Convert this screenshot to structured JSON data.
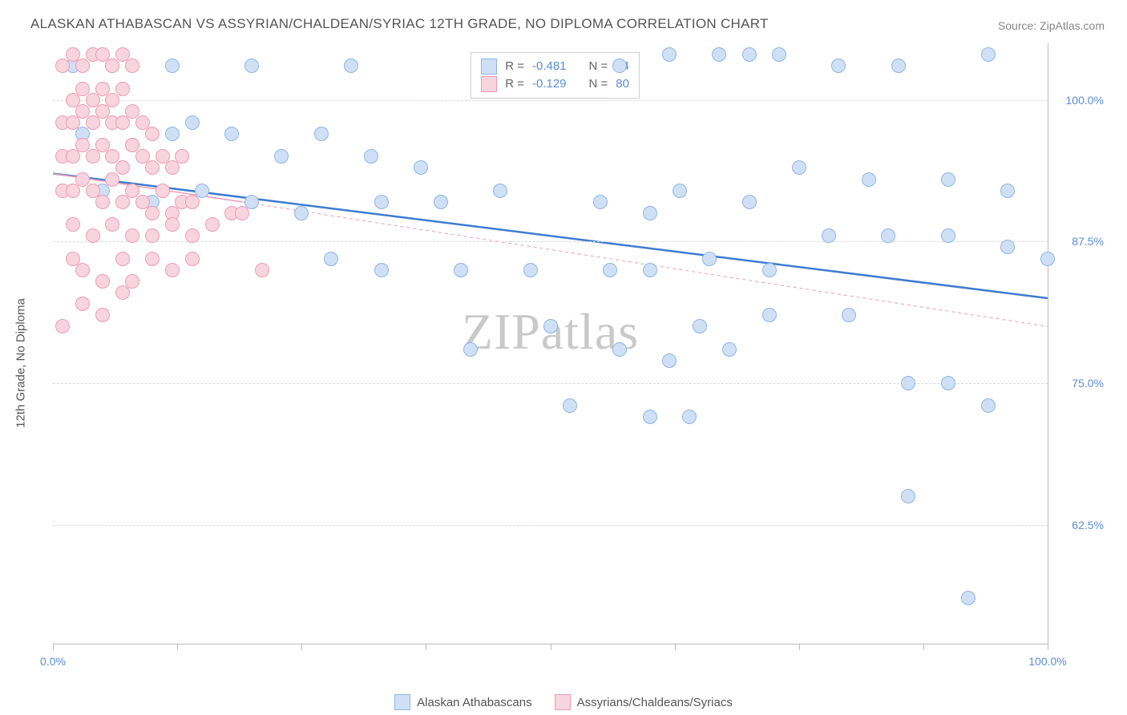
{
  "title": "ALASKAN ATHABASCAN VS ASSYRIAN/CHALDEAN/SYRIAC 12TH GRADE, NO DIPLOMA CORRELATION CHART",
  "source_label": "Source:",
  "source_link": "ZipAtlas.com",
  "y_axis_label": "12th Grade, No Diploma",
  "watermark_a": "ZIP",
  "watermark_b": "atlas",
  "chart": {
    "type": "scatter",
    "xlim": [
      0,
      100
    ],
    "ylim": [
      52,
      105
    ],
    "background_color": "#ffffff",
    "grid_color": "#d8d8d8",
    "axis_color": "#bbbbbb",
    "y_ticks": [
      62.5,
      75.0,
      87.5,
      100.0
    ],
    "y_tick_labels": [
      "62.5%",
      "75.0%",
      "87.5%",
      "100.0%"
    ],
    "x_ticks": [
      0,
      12.5,
      25,
      37.5,
      50,
      62.5,
      75,
      87.5,
      100
    ],
    "x_tick_labels": {
      "0": "0.0%",
      "100": "100.0%"
    },
    "marker_radius": 9,
    "series": [
      {
        "name": "Alaskan Athabascans",
        "fill": "#cfe0f6",
        "stroke": "#8fb4e4",
        "r_value": "-0.481",
        "n_value": "74",
        "trend": {
          "type": "solid",
          "color": "#3d7cd0",
          "width": 2.5,
          "x1": 0,
          "y1": 93.5,
          "x2": 100,
          "y2": 82.5,
          "dash_extend": false
        },
        "points": [
          [
            2,
            103
          ],
          [
            6,
            103
          ],
          [
            12,
            103
          ],
          [
            20,
            103
          ],
          [
            30,
            103
          ],
          [
            57,
            103
          ],
          [
            62,
            104
          ],
          [
            67,
            104
          ],
          [
            70,
            104
          ],
          [
            73,
            104
          ],
          [
            79,
            103
          ],
          [
            85,
            103
          ],
          [
            94,
            104
          ],
          [
            3,
            97
          ],
          [
            8,
            96
          ],
          [
            12,
            97
          ],
          [
            14,
            98
          ],
          [
            18,
            97
          ],
          [
            23,
            95
          ],
          [
            27,
            97
          ],
          [
            32,
            95
          ],
          [
            37,
            94
          ],
          [
            5,
            92
          ],
          [
            10,
            91
          ],
          [
            15,
            92
          ],
          [
            20,
            91
          ],
          [
            25,
            90
          ],
          [
            33,
            91
          ],
          [
            39,
            91
          ],
          [
            45,
            92
          ],
          [
            55,
            91
          ],
          [
            60,
            90
          ],
          [
            63,
            92
          ],
          [
            70,
            91
          ],
          [
            75,
            94
          ],
          [
            82,
            93
          ],
          [
            90,
            93
          ],
          [
            96,
            92
          ],
          [
            28,
            86
          ],
          [
            33,
            85
          ],
          [
            41,
            85
          ],
          [
            48,
            85
          ],
          [
            56,
            85
          ],
          [
            60,
            85
          ],
          [
            66,
            86
          ],
          [
            72,
            85
          ],
          [
            78,
            88
          ],
          [
            84,
            88
          ],
          [
            90,
            88
          ],
          [
            96,
            87
          ],
          [
            100,
            86
          ],
          [
            42,
            78
          ],
          [
            50,
            80
          ],
          [
            57,
            78
          ],
          [
            62,
            77
          ],
          [
            65,
            80
          ],
          [
            68,
            78
          ],
          [
            72,
            81
          ],
          [
            80,
            81
          ],
          [
            86,
            75
          ],
          [
            90,
            75
          ],
          [
            94,
            73
          ],
          [
            52,
            73
          ],
          [
            60,
            72
          ],
          [
            64,
            72
          ],
          [
            86,
            65
          ],
          [
            92,
            56
          ]
        ]
      },
      {
        "name": "Assyrians/Chaldeans/Syriacs",
        "fill": "#f8d4de",
        "stroke": "#ec9cb4",
        "r_value": "-0.129",
        "n_value": "80",
        "trend": {
          "type": "dashed",
          "color": "#ec9cb4",
          "width": 1.5,
          "x1": 0,
          "y1": 93.5,
          "x2": 19,
          "y2": 91.0,
          "dash_extend": true,
          "dx2": 100,
          "dy2": 80.0
        },
        "points": [
          [
            1,
            103
          ],
          [
            2,
            104
          ],
          [
            3,
            103
          ],
          [
            4,
            104
          ],
          [
            5,
            104
          ],
          [
            6,
            103
          ],
          [
            7,
            104
          ],
          [
            8,
            103
          ],
          [
            2,
            100
          ],
          [
            3,
            101
          ],
          [
            4,
            100
          ],
          [
            5,
            101
          ],
          [
            6,
            100
          ],
          [
            7,
            101
          ],
          [
            1,
            98
          ],
          [
            2,
            98
          ],
          [
            3,
            99
          ],
          [
            4,
            98
          ],
          [
            5,
            99
          ],
          [
            6,
            98
          ],
          [
            7,
            98
          ],
          [
            8,
            99
          ],
          [
            9,
            98
          ],
          [
            10,
            97
          ],
          [
            1,
            95
          ],
          [
            2,
            95
          ],
          [
            3,
            96
          ],
          [
            4,
            95
          ],
          [
            5,
            96
          ],
          [
            6,
            95
          ],
          [
            7,
            94
          ],
          [
            8,
            96
          ],
          [
            9,
            95
          ],
          [
            10,
            94
          ],
          [
            11,
            95
          ],
          [
            12,
            94
          ],
          [
            13,
            95
          ],
          [
            1,
            92
          ],
          [
            2,
            92
          ],
          [
            3,
            93
          ],
          [
            4,
            92
          ],
          [
            5,
            91
          ],
          [
            6,
            93
          ],
          [
            7,
            91
          ],
          [
            8,
            92
          ],
          [
            9,
            91
          ],
          [
            10,
            90
          ],
          [
            11,
            92
          ],
          [
            12,
            90
          ],
          [
            13,
            91
          ],
          [
            14,
            91
          ],
          [
            2,
            89
          ],
          [
            4,
            88
          ],
          [
            6,
            89
          ],
          [
            8,
            88
          ],
          [
            10,
            88
          ],
          [
            12,
            89
          ],
          [
            14,
            88
          ],
          [
            16,
            89
          ],
          [
            18,
            90
          ],
          [
            2,
            86
          ],
          [
            3,
            85
          ],
          [
            5,
            84
          ],
          [
            7,
            86
          ],
          [
            8,
            84
          ],
          [
            10,
            86
          ],
          [
            12,
            85
          ],
          [
            14,
            86
          ],
          [
            3,
            82
          ],
          [
            5,
            81
          ],
          [
            7,
            83
          ],
          [
            1,
            80
          ],
          [
            19,
            90
          ],
          [
            21,
            85
          ]
        ]
      }
    ]
  },
  "legend_labels": {
    "r": "R =",
    "n": "N ="
  },
  "corr_legend": {
    "left_pct": 42,
    "top_pct": 1.5
  },
  "bottom_legend": [
    {
      "label": "Alaskan Athabascans",
      "fill": "#cfe0f6",
      "stroke": "#8fb4e4"
    },
    {
      "label": "Assyrians/Chaldeans/Syriacs",
      "fill": "#f8d4de",
      "stroke": "#ec9cb4"
    }
  ]
}
